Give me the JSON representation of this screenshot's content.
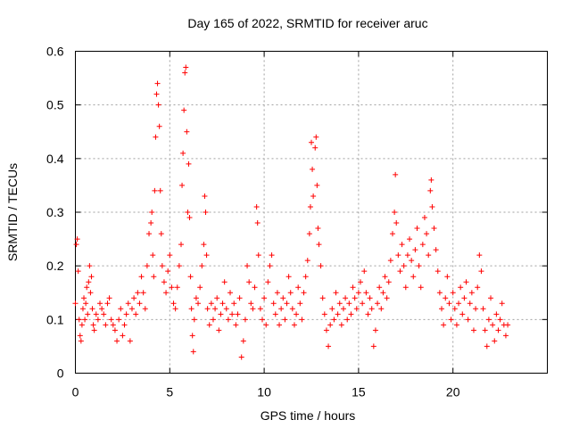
{
  "chart_data": {
    "type": "scatter",
    "title": "Day 165 of 2022, SRMTID for receiver aruc",
    "xlabel": "GPS time / hours",
    "ylabel": "SRMTID / TECUs",
    "xlim": [
      0,
      25
    ],
    "ylim": [
      0,
      0.6
    ],
    "xticks": [
      0,
      5,
      10,
      15,
      20
    ],
    "yticks": [
      0,
      0.1,
      0.2,
      0.3,
      0.4,
      0.5,
      0.6
    ],
    "grid": true,
    "marker": "plus",
    "color": "#ff0000",
    "series": [
      {
        "name": "SRMTID",
        "points": [
          [
            0.0,
            0.13
          ],
          [
            0.05,
            0.24
          ],
          [
            0.1,
            0.25
          ],
          [
            0.15,
            0.19
          ],
          [
            0.2,
            0.1
          ],
          [
            0.25,
            0.07
          ],
          [
            0.3,
            0.06
          ],
          [
            0.35,
            0.09
          ],
          [
            0.4,
            0.12
          ],
          [
            0.45,
            0.14
          ],
          [
            0.5,
            0.1
          ],
          [
            0.55,
            0.13
          ],
          [
            0.6,
            0.16
          ],
          [
            0.65,
            0.11
          ],
          [
            0.7,
            0.17
          ],
          [
            0.75,
            0.2
          ],
          [
            0.8,
            0.15
          ],
          [
            0.85,
            0.18
          ],
          [
            0.9,
            0.12
          ],
          [
            0.95,
            0.09
          ],
          [
            1.0,
            0.08
          ],
          [
            1.1,
            0.11
          ],
          [
            1.2,
            0.1
          ],
          [
            1.3,
            0.13
          ],
          [
            1.4,
            0.12
          ],
          [
            1.5,
            0.11
          ],
          [
            1.6,
            0.09
          ],
          [
            1.7,
            0.13
          ],
          [
            1.8,
            0.14
          ],
          [
            1.9,
            0.1
          ],
          [
            2.0,
            0.09
          ],
          [
            2.1,
            0.08
          ],
          [
            2.2,
            0.06
          ],
          [
            2.3,
            0.1
          ],
          [
            2.4,
            0.12
          ],
          [
            2.5,
            0.07
          ],
          [
            2.6,
            0.09
          ],
          [
            2.7,
            0.11
          ],
          [
            2.8,
            0.13
          ],
          [
            2.9,
            0.06
          ],
          [
            3.0,
            0.12
          ],
          [
            3.1,
            0.14
          ],
          [
            3.2,
            0.11
          ],
          [
            3.3,
            0.15
          ],
          [
            3.4,
            0.13
          ],
          [
            3.5,
            0.18
          ],
          [
            3.6,
            0.15
          ],
          [
            3.7,
            0.12
          ],
          [
            3.8,
            0.2
          ],
          [
            3.9,
            0.26
          ],
          [
            4.0,
            0.28
          ],
          [
            4.05,
            0.3
          ],
          [
            4.1,
            0.22
          ],
          [
            4.15,
            0.18
          ],
          [
            4.2,
            0.34
          ],
          [
            4.25,
            0.44
          ],
          [
            4.3,
            0.52
          ],
          [
            4.35,
            0.54
          ],
          [
            4.4,
            0.5
          ],
          [
            4.45,
            0.46
          ],
          [
            4.5,
            0.34
          ],
          [
            4.55,
            0.26
          ],
          [
            4.6,
            0.2
          ],
          [
            4.7,
            0.17
          ],
          [
            4.8,
            0.15
          ],
          [
            4.9,
            0.19
          ],
          [
            5.0,
            0.22
          ],
          [
            5.1,
            0.16
          ],
          [
            5.2,
            0.13
          ],
          [
            5.3,
            0.12
          ],
          [
            5.4,
            0.16
          ],
          [
            5.5,
            0.2
          ],
          [
            5.6,
            0.24
          ],
          [
            5.65,
            0.35
          ],
          [
            5.7,
            0.41
          ],
          [
            5.75,
            0.49
          ],
          [
            5.8,
            0.56
          ],
          [
            5.85,
            0.57
          ],
          [
            5.9,
            0.45
          ],
          [
            5.95,
            0.3
          ],
          [
            6.0,
            0.39
          ],
          [
            6.05,
            0.29
          ],
          [
            6.1,
            0.18
          ],
          [
            6.15,
            0.12
          ],
          [
            6.2,
            0.07
          ],
          [
            6.25,
            0.04
          ],
          [
            6.3,
            0.1
          ],
          [
            6.4,
            0.14
          ],
          [
            6.5,
            0.13
          ],
          [
            6.6,
            0.16
          ],
          [
            6.7,
            0.2
          ],
          [
            6.8,
            0.24
          ],
          [
            6.85,
            0.33
          ],
          [
            6.9,
            0.3
          ],
          [
            6.95,
            0.22
          ],
          [
            7.0,
            0.12
          ],
          [
            7.1,
            0.09
          ],
          [
            7.2,
            0.13
          ],
          [
            7.3,
            0.1
          ],
          [
            7.4,
            0.12
          ],
          [
            7.5,
            0.14
          ],
          [
            7.6,
            0.08
          ],
          [
            7.7,
            0.11
          ],
          [
            7.8,
            0.13
          ],
          [
            7.9,
            0.17
          ],
          [
            8.0,
            0.12
          ],
          [
            8.1,
            0.1
          ],
          [
            8.2,
            0.15
          ],
          [
            8.3,
            0.11
          ],
          [
            8.4,
            0.13
          ],
          [
            8.5,
            0.09
          ],
          [
            8.6,
            0.11
          ],
          [
            8.7,
            0.14
          ],
          [
            8.8,
            0.03
          ],
          [
            8.9,
            0.06
          ],
          [
            9.0,
            0.1
          ],
          [
            9.1,
            0.2
          ],
          [
            9.2,
            0.17
          ],
          [
            9.3,
            0.13
          ],
          [
            9.4,
            0.12
          ],
          [
            9.5,
            0.16
          ],
          [
            9.6,
            0.31
          ],
          [
            9.65,
            0.28
          ],
          [
            9.7,
            0.22
          ],
          [
            9.8,
            0.12
          ],
          [
            9.9,
            0.1
          ],
          [
            10.0,
            0.14
          ],
          [
            10.1,
            0.09
          ],
          [
            10.2,
            0.17
          ],
          [
            10.3,
            0.2
          ],
          [
            10.4,
            0.22
          ],
          [
            10.5,
            0.13
          ],
          [
            10.6,
            0.11
          ],
          [
            10.7,
            0.15
          ],
          [
            10.8,
            0.09
          ],
          [
            10.9,
            0.12
          ],
          [
            11.0,
            0.14
          ],
          [
            11.1,
            0.1
          ],
          [
            11.2,
            0.13
          ],
          [
            11.3,
            0.18
          ],
          [
            11.4,
            0.15
          ],
          [
            11.5,
            0.12
          ],
          [
            11.6,
            0.09
          ],
          [
            11.7,
            0.11
          ],
          [
            11.8,
            0.16
          ],
          [
            11.9,
            0.13
          ],
          [
            12.0,
            0.1
          ],
          [
            12.1,
            0.15
          ],
          [
            12.2,
            0.18
          ],
          [
            12.3,
            0.21
          ],
          [
            12.4,
            0.26
          ],
          [
            12.45,
            0.31
          ],
          [
            12.5,
            0.43
          ],
          [
            12.55,
            0.38
          ],
          [
            12.6,
            0.33
          ],
          [
            12.7,
            0.42
          ],
          [
            12.75,
            0.44
          ],
          [
            12.8,
            0.35
          ],
          [
            12.85,
            0.27
          ],
          [
            12.9,
            0.24
          ],
          [
            13.0,
            0.2
          ],
          [
            13.1,
            0.14
          ],
          [
            13.2,
            0.11
          ],
          [
            13.3,
            0.08
          ],
          [
            13.4,
            0.05
          ],
          [
            13.5,
            0.09
          ],
          [
            13.6,
            0.12
          ],
          [
            13.7,
            0.1
          ],
          [
            13.8,
            0.15
          ],
          [
            13.9,
            0.11
          ],
          [
            14.0,
            0.13
          ],
          [
            14.1,
            0.09
          ],
          [
            14.2,
            0.12
          ],
          [
            14.3,
            0.14
          ],
          [
            14.4,
            0.1
          ],
          [
            14.5,
            0.13
          ],
          [
            14.6,
            0.11
          ],
          [
            14.7,
            0.16
          ],
          [
            14.8,
            0.14
          ],
          [
            14.9,
            0.12
          ],
          [
            15.0,
            0.15
          ],
          [
            15.1,
            0.17
          ],
          [
            15.2,
            0.13
          ],
          [
            15.3,
            0.19
          ],
          [
            15.4,
            0.15
          ],
          [
            15.5,
            0.11
          ],
          [
            15.6,
            0.14
          ],
          [
            15.7,
            0.12
          ],
          [
            15.8,
            0.05
          ],
          [
            15.9,
            0.08
          ],
          [
            16.0,
            0.13
          ],
          [
            16.1,
            0.16
          ],
          [
            16.2,
            0.12
          ],
          [
            16.3,
            0.15
          ],
          [
            16.4,
            0.18
          ],
          [
            16.5,
            0.14
          ],
          [
            16.6,
            0.17
          ],
          [
            16.7,
            0.21
          ],
          [
            16.8,
            0.26
          ],
          [
            16.9,
            0.3
          ],
          [
            16.95,
            0.37
          ],
          [
            17.0,
            0.28
          ],
          [
            17.1,
            0.22
          ],
          [
            17.2,
            0.19
          ],
          [
            17.3,
            0.24
          ],
          [
            17.4,
            0.2
          ],
          [
            17.5,
            0.16
          ],
          [
            17.6,
            0.22
          ],
          [
            17.7,
            0.25
          ],
          [
            17.8,
            0.21
          ],
          [
            17.9,
            0.18
          ],
          [
            18.0,
            0.23
          ],
          [
            18.1,
            0.27
          ],
          [
            18.2,
            0.2
          ],
          [
            18.3,
            0.16
          ],
          [
            18.4,
            0.24
          ],
          [
            18.5,
            0.29
          ],
          [
            18.6,
            0.26
          ],
          [
            18.7,
            0.22
          ],
          [
            18.8,
            0.34
          ],
          [
            18.85,
            0.36
          ],
          [
            18.9,
            0.31
          ],
          [
            19.0,
            0.27
          ],
          [
            19.1,
            0.23
          ],
          [
            19.2,
            0.19
          ],
          [
            19.3,
            0.15
          ],
          [
            19.4,
            0.12
          ],
          [
            19.5,
            0.09
          ],
          [
            19.6,
            0.14
          ],
          [
            19.7,
            0.18
          ],
          [
            19.8,
            0.13
          ],
          [
            19.9,
            0.1
          ],
          [
            20.0,
            0.15
          ],
          [
            20.1,
            0.12
          ],
          [
            20.2,
            0.09
          ],
          [
            20.3,
            0.13
          ],
          [
            20.4,
            0.16
          ],
          [
            20.5,
            0.11
          ],
          [
            20.6,
            0.14
          ],
          [
            20.7,
            0.17
          ],
          [
            20.8,
            0.1
          ],
          [
            20.9,
            0.13
          ],
          [
            21.0,
            0.15
          ],
          [
            21.1,
            0.08
          ],
          [
            21.2,
            0.12
          ],
          [
            21.3,
            0.16
          ],
          [
            21.4,
            0.22
          ],
          [
            21.5,
            0.19
          ],
          [
            21.6,
            0.12
          ],
          [
            21.7,
            0.08
          ],
          [
            21.8,
            0.05
          ],
          [
            21.9,
            0.1
          ],
          [
            22.0,
            0.14
          ],
          [
            22.1,
            0.09
          ],
          [
            22.2,
            0.06
          ],
          [
            22.3,
            0.11
          ],
          [
            22.4,
            0.08
          ],
          [
            22.5,
            0.1
          ],
          [
            22.6,
            0.13
          ],
          [
            22.7,
            0.09
          ],
          [
            22.8,
            0.07
          ],
          [
            22.9,
            0.09
          ]
        ]
      }
    ]
  }
}
